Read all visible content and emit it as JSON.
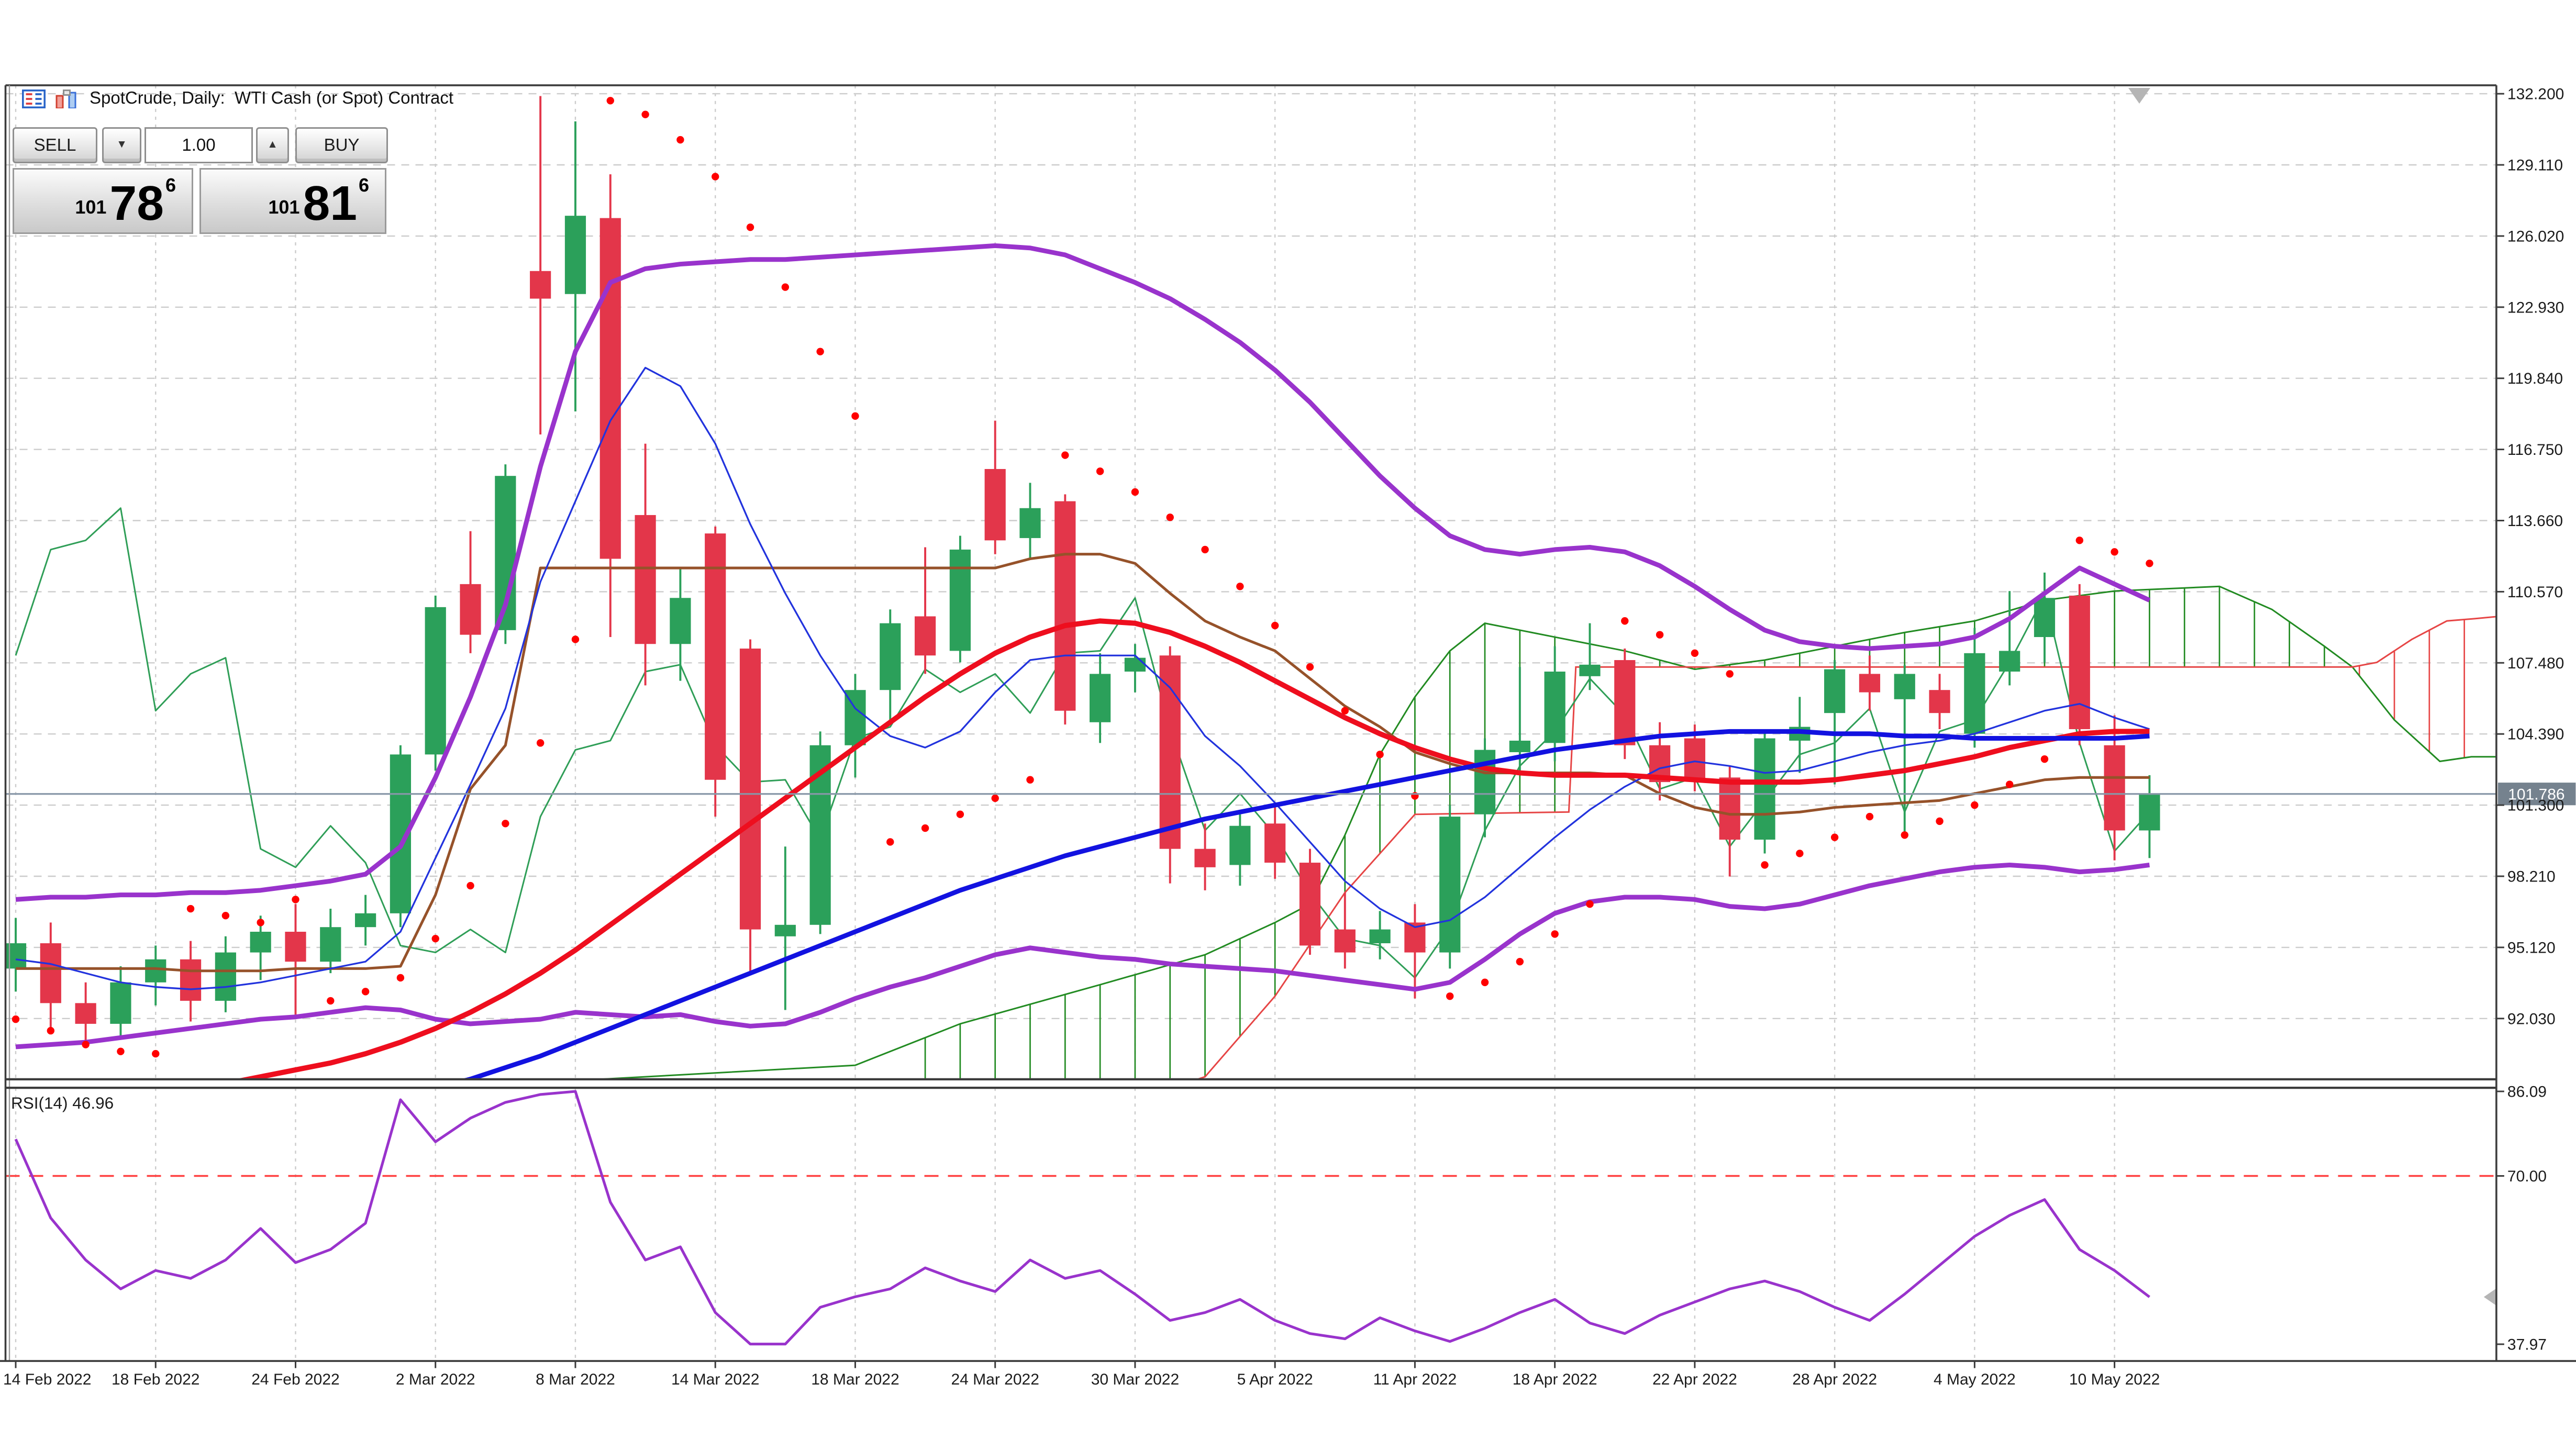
{
  "window": {
    "title": "SpotCrude, Daily:  WTI Cash (or Spot) Contract"
  },
  "trade_panel": {
    "sell_label": "SELL",
    "buy_label": "BUY",
    "volume": "1.00",
    "spinner_down": "▼",
    "spinner_up": "▲",
    "sell_price": {
      "prefix": "101",
      "main": "78",
      "sup": "6"
    },
    "buy_price": {
      "prefix": "101",
      "main": "81",
      "sup": "6"
    }
  },
  "colors": {
    "bull": "#2ba05a",
    "bear": "#e3364a",
    "sar": "#ff0000",
    "bollinger": "#9933cc",
    "ma_fast_red": "#ee0e1e",
    "ma_slow_blue": "#1212e0",
    "tenkan": "#2233dd",
    "kijun": "#96522a",
    "chikou": "#2f9e57",
    "senkou_a": "#228b22",
    "senkou_b": "#e64545",
    "rsi_line": "#9933cc",
    "rsi_level": "#ff4040",
    "grid": "#cccccc",
    "axis_text": "#1b1b1b",
    "bid_line": "#8897a8",
    "badge_bg": "#75828e",
    "badge_text": "#ffffff",
    "border": "#3c3c3c",
    "marker": "#b5b5b5"
  },
  "chart_data": {
    "type": "candlestick",
    "symbol": "SpotCrude",
    "timeframe": "Daily",
    "x_tick_labels": [
      "14 Feb 2022",
      "18 Feb 2022",
      "24 Feb 2022",
      "2 Mar 2022",
      "8 Mar 2022",
      "14 Mar 2022",
      "18 Mar 2022",
      "24 Mar 2022",
      "30 Mar 2022",
      "5 Apr 2022",
      "11 Apr 2022",
      "18 Apr 2022",
      "22 Apr 2022",
      "28 Apr 2022",
      "4 May 2022",
      "10 May 2022"
    ],
    "bars_per_tick": 4,
    "price_axis_labels": [
      "132.200",
      "129.110",
      "126.020",
      "122.930",
      "119.840",
      "116.750",
      "113.660",
      "110.570",
      "107.480",
      "104.390",
      "101.300",
      "98.210",
      "95.120",
      "92.030"
    ],
    "price_axis_top_value": 132.2,
    "price_axis_step": 3.09,
    "current_price": "101.786",
    "ohlc": [
      [
        94.2,
        96.4,
        93.2,
        95.3
      ],
      [
        95.3,
        96.2,
        91.6,
        92.7
      ],
      [
        92.7,
        93.6,
        90.8,
        91.8
      ],
      [
        91.8,
        94.3,
        91.2,
        93.6
      ],
      [
        93.6,
        95.2,
        92.6,
        94.6
      ],
      [
        94.6,
        95.4,
        91.9,
        92.8
      ],
      [
        92.8,
        95.6,
        92.3,
        94.9
      ],
      [
        94.9,
        96.5,
        93.7,
        95.8
      ],
      [
        95.8,
        97.0,
        92.2,
        94.5
      ],
      [
        94.5,
        96.8,
        94.0,
        96.0
      ],
      [
        96.0,
        97.4,
        95.2,
        96.6
      ],
      [
        96.6,
        103.9,
        96.0,
        103.5
      ],
      [
        103.5,
        110.4,
        102.8,
        109.9
      ],
      [
        110.9,
        113.2,
        107.9,
        108.7
      ],
      [
        108.9,
        116.1,
        108.3,
        115.6
      ],
      [
        124.5,
        132.1,
        117.4,
        123.3
      ],
      [
        123.5,
        131.0,
        118.4,
        126.9
      ],
      [
        126.8,
        128.7,
        108.6,
        112.0
      ],
      [
        113.9,
        117.0,
        106.5,
        108.3
      ],
      [
        108.3,
        111.6,
        106.7,
        110.3
      ],
      [
        113.1,
        113.4,
        100.8,
        102.4
      ],
      [
        108.1,
        108.5,
        93.9,
        95.9
      ],
      [
        95.6,
        99.5,
        92.4,
        96.1
      ],
      [
        96.1,
        104.5,
        95.7,
        103.9
      ],
      [
        103.9,
        107.0,
        102.5,
        106.3
      ],
      [
        106.3,
        109.8,
        105.0,
        109.2
      ],
      [
        109.5,
        112.5,
        107.0,
        107.8
      ],
      [
        108.0,
        113.0,
        107.5,
        112.4
      ],
      [
        115.9,
        118.0,
        112.2,
        112.8
      ],
      [
        112.9,
        115.3,
        112.0,
        114.2
      ],
      [
        114.5,
        114.8,
        104.8,
        105.4
      ],
      [
        104.9,
        107.9,
        104.0,
        107.0
      ],
      [
        107.1,
        108.3,
        106.2,
        107.7
      ],
      [
        107.8,
        108.2,
        97.9,
        99.4
      ],
      [
        99.4,
        100.5,
        97.6,
        98.6
      ],
      [
        98.7,
        100.9,
        97.8,
        100.4
      ],
      [
        100.5,
        101.2,
        98.1,
        98.8
      ],
      [
        98.8,
        99.4,
        94.8,
        95.2
      ],
      [
        95.9,
        97.5,
        94.2,
        94.9
      ],
      [
        95.3,
        96.7,
        94.6,
        95.9
      ],
      [
        96.2,
        97.0,
        92.9,
        94.9
      ],
      [
        94.9,
        101.3,
        94.2,
        100.8
      ],
      [
        100.9,
        104.2,
        99.9,
        103.7
      ],
      [
        103.6,
        107.3,
        102.8,
        104.1
      ],
      [
        104.0,
        108.2,
        103.2,
        107.1
      ],
      [
        106.9,
        109.2,
        106.3,
        107.4
      ],
      [
        107.6,
        108.1,
        103.3,
        103.9
      ],
      [
        103.9,
        104.9,
        101.5,
        102.3
      ],
      [
        104.2,
        104.8,
        101.9,
        102.4
      ],
      [
        102.5,
        103.0,
        98.2,
        99.8
      ],
      [
        99.8,
        104.6,
        99.2,
        104.2
      ],
      [
        104.1,
        106.0,
        102.7,
        104.7
      ],
      [
        105.3,
        107.6,
        102.2,
        107.2
      ],
      [
        107.0,
        107.8,
        105.4,
        106.2
      ],
      [
        105.9,
        107.4,
        100.1,
        107.0
      ],
      [
        106.3,
        107.0,
        104.6,
        105.3
      ],
      [
        104.4,
        109.0,
        103.8,
        107.9
      ],
      [
        107.1,
        110.6,
        106.5,
        108.0
      ],
      [
        108.6,
        111.4,
        107.5,
        110.3
      ],
      [
        110.4,
        110.9,
        103.9,
        104.6
      ],
      [
        103.9,
        105.2,
        98.9,
        100.2
      ],
      [
        100.2,
        102.6,
        99.0,
        101.8
      ]
    ],
    "indicators": {
      "bollinger_upper": [
        97.2,
        97.3,
        97.3,
        97.4,
        97.4,
        97.5,
        97.5,
        97.6,
        97.8,
        98.0,
        98.3,
        99.5,
        102.5,
        106.0,
        110.0,
        116.0,
        121.0,
        124.0,
        124.6,
        124.8,
        124.9,
        125.0,
        125.0,
        125.1,
        125.2,
        125.3,
        125.4,
        125.5,
        125.6,
        125.5,
        125.2,
        124.6,
        124.0,
        123.3,
        122.4,
        121.4,
        120.2,
        118.8,
        117.2,
        115.6,
        114.2,
        113.0,
        112.4,
        112.2,
        112.4,
        112.5,
        112.3,
        111.7,
        110.8,
        109.8,
        108.9,
        108.4,
        108.2,
        108.1,
        108.2,
        108.3,
        108.6,
        109.4,
        110.5,
        111.6,
        110.9,
        110.2
      ],
      "bollinger_lower": [
        90.8,
        90.9,
        91.0,
        91.2,
        91.4,
        91.6,
        91.8,
        92.0,
        92.1,
        92.3,
        92.5,
        92.4,
        92.0,
        91.8,
        91.9,
        92.0,
        92.3,
        92.2,
        92.1,
        92.2,
        91.9,
        91.7,
        91.8,
        92.3,
        92.9,
        93.4,
        93.8,
        94.3,
        94.8,
        95.1,
        94.9,
        94.7,
        94.6,
        94.4,
        94.3,
        94.2,
        94.1,
        93.9,
        93.7,
        93.5,
        93.3,
        93.6,
        94.6,
        95.7,
        96.6,
        97.1,
        97.3,
        97.3,
        97.2,
        96.9,
        96.8,
        97.0,
        97.4,
        97.8,
        98.1,
        98.4,
        98.6,
        98.7,
        98.6,
        98.4,
        98.5,
        98.7
      ],
      "ma_red": [
        88.3,
        88.4,
        88.5,
        88.6,
        88.8,
        89.0,
        89.2,
        89.5,
        89.8,
        90.1,
        90.5,
        91.0,
        91.6,
        92.3,
        93.1,
        94.0,
        95.0,
        96.1,
        97.2,
        98.3,
        99.4,
        100.5,
        101.6,
        102.7,
        103.8,
        104.9,
        106.0,
        107.0,
        107.9,
        108.6,
        109.1,
        109.3,
        109.2,
        108.8,
        108.2,
        107.5,
        106.7,
        105.9,
        105.1,
        104.4,
        103.8,
        103.3,
        102.9,
        102.7,
        102.6,
        102.6,
        102.6,
        102.5,
        102.4,
        102.3,
        102.3,
        102.3,
        102.4,
        102.6,
        102.8,
        103.1,
        103.4,
        103.8,
        104.1,
        104.4,
        104.5,
        104.5
      ],
      "ma_blue": [
        86.4,
        86.5,
        86.6,
        86.8,
        87.0,
        87.2,
        87.4,
        87.6,
        87.8,
        88.0,
        88.3,
        88.6,
        89.0,
        89.4,
        89.9,
        90.4,
        91.0,
        91.6,
        92.2,
        92.8,
        93.4,
        94.0,
        94.6,
        95.2,
        95.8,
        96.4,
        97.0,
        97.6,
        98.1,
        98.6,
        99.1,
        99.5,
        99.9,
        100.3,
        100.7,
        101.0,
        101.3,
        101.6,
        101.9,
        102.2,
        102.5,
        102.8,
        103.1,
        103.4,
        103.7,
        103.9,
        104.1,
        104.3,
        104.4,
        104.5,
        104.5,
        104.5,
        104.4,
        104.4,
        104.3,
        104.3,
        104.2,
        104.2,
        104.2,
        104.2,
        104.2,
        104.3
      ],
      "ichimoku_tenkan": [
        94.6,
        94.4,
        94.0,
        93.6,
        93.4,
        93.3,
        93.4,
        93.6,
        93.9,
        94.2,
        94.5,
        95.8,
        99.0,
        102.2,
        105.5,
        111.0,
        114.5,
        118.0,
        120.3,
        119.5,
        117.0,
        113.5,
        110.5,
        107.8,
        105.5,
        104.3,
        103.8,
        104.5,
        106.2,
        107.6,
        107.8,
        107.8,
        107.8,
        106.4,
        104.3,
        103.0,
        101.4,
        99.7,
        98.0,
        96.8,
        96.0,
        96.3,
        97.3,
        98.6,
        99.9,
        101.1,
        102.1,
        102.9,
        103.2,
        103.0,
        102.7,
        102.8,
        103.2,
        103.6,
        103.9,
        104.1,
        104.4,
        104.9,
        105.4,
        105.7,
        105.1,
        104.6
      ],
      "ichimoku_kijun": [
        94.2,
        94.2,
        94.2,
        94.2,
        94.2,
        94.1,
        94.1,
        94.1,
        94.2,
        94.2,
        94.2,
        94.3,
        97.4,
        102.0,
        103.9,
        111.6,
        111.6,
        111.6,
        111.6,
        111.6,
        111.6,
        111.6,
        111.6,
        111.6,
        111.6,
        111.6,
        111.6,
        111.6,
        111.6,
        112.0,
        112.2,
        112.2,
        111.8,
        110.5,
        109.3,
        108.6,
        108.0,
        106.8,
        105.6,
        104.7,
        103.6,
        103.1,
        102.7,
        102.7,
        102.7,
        102.7,
        102.6,
        101.8,
        101.2,
        100.9,
        100.9,
        101.0,
        101.2,
        101.3,
        101.4,
        101.5,
        101.8,
        102.1,
        102.4,
        102.5,
        102.5,
        102.5
      ],
      "ichimoku_chikou": [
        107.8,
        112.4,
        112.8,
        114.2,
        105.4,
        107.0,
        107.7,
        99.4,
        98.6,
        100.4,
        98.8,
        95.2,
        94.9,
        95.9,
        94.9,
        100.8,
        103.7,
        104.1,
        107.1,
        107.4,
        103.9,
        102.3,
        102.4,
        99.8,
        104.2,
        104.7,
        107.2,
        106.2,
        107.0,
        105.3,
        107.9,
        108.0,
        110.3,
        104.6,
        100.2,
        101.8,
        100.0,
        97.5,
        95.5,
        95.2,
        93.8,
        96.0,
        100.2,
        103.0,
        104.5,
        106.8,
        105.2,
        102.0,
        102.5,
        99.5,
        101.5,
        103.5,
        104.0,
        105.5,
        101.0,
        104.5,
        105.0,
        107.5,
        110.4,
        104.0,
        99.3,
        101.0
      ],
      "senkou_a_anchors": [
        [
          0,
          88.0
        ],
        [
          24,
          90.0
        ],
        [
          27,
          91.8
        ],
        [
          31,
          93.5
        ],
        [
          34,
          94.8
        ],
        [
          36,
          96.2
        ],
        [
          37,
          97.0
        ],
        [
          38,
          100.0
        ],
        [
          39,
          103.5
        ],
        [
          40,
          106.0
        ],
        [
          41,
          108.0
        ],
        [
          42,
          109.2
        ],
        [
          44,
          108.6
        ],
        [
          46,
          108.0
        ],
        [
          48,
          107.2
        ],
        [
          50,
          107.6
        ],
        [
          52,
          108.2
        ],
        [
          54,
          108.8
        ],
        [
          56,
          109.3
        ],
        [
          58,
          110.2
        ],
        [
          60,
          110.6
        ],
        [
          63,
          110.8
        ],
        [
          64.5,
          109.8
        ],
        [
          66,
          108.2
        ],
        [
          66.8,
          107.3
        ],
        [
          68,
          105.0
        ],
        [
          69.3,
          103.2
        ],
        [
          70.2,
          103.4
        ],
        [
          71,
          103.4
        ]
      ],
      "senkou_b_anchors": [
        [
          0,
          86.2
        ],
        [
          20,
          86.5
        ],
        [
          30,
          87.5
        ],
        [
          34,
          89.5
        ],
        [
          36,
          93.0
        ],
        [
          38,
          97.5
        ],
        [
          40,
          100.9
        ],
        [
          44.4,
          101.0
        ],
        [
          44.6,
          107.3
        ],
        [
          66.8,
          107.3
        ],
        [
          67.5,
          107.5
        ],
        [
          68.5,
          108.5
        ],
        [
          69.5,
          109.3
        ],
        [
          70.3,
          109.4
        ],
        [
          71,
          109.5
        ]
      ],
      "parabolic_sar": [
        92.0,
        91.5,
        90.9,
        90.6,
        90.5,
        96.8,
        96.5,
        96.2,
        97.2,
        92.8,
        93.2,
        93.8,
        95.5,
        97.8,
        100.5,
        104.0,
        108.5,
        131.9,
        131.3,
        130.2,
        128.6,
        126.4,
        123.8,
        121.0,
        118.2,
        99.7,
        100.3,
        100.9,
        101.6,
        102.4,
        116.5,
        115.8,
        114.9,
        113.8,
        112.4,
        110.8,
        109.1,
        107.3,
        105.4,
        103.5,
        101.7,
        93.0,
        93.6,
        94.5,
        95.7,
        97.0,
        109.3,
        108.7,
        107.9,
        107.0,
        98.7,
        99.2,
        99.9,
        100.8,
        100.0,
        100.6,
        101.3,
        102.2,
        103.3,
        112.8,
        112.3,
        111.8
      ]
    },
    "rsi": {
      "label": "RSI(14) 46.96",
      "period": 14,
      "current": 46.96,
      "axis_labels": [
        "86.09",
        "70.00",
        "37.97"
      ],
      "axis_max": 86.09,
      "axis_min": 37.97,
      "level": 70,
      "values": [
        77,
        62,
        54,
        48.5,
        52,
        50.5,
        54,
        60,
        53.5,
        56,
        61,
        84.5,
        76.5,
        81,
        84,
        85.5,
        86.09,
        65,
        54,
        56.5,
        44,
        38,
        38,
        45,
        47,
        48.5,
        52.5,
        50,
        48,
        54,
        50.5,
        52,
        47.5,
        42.5,
        44,
        46.5,
        42.5,
        40,
        39,
        43,
        40.5,
        38.5,
        41,
        44,
        46.5,
        42,
        40,
        43.5,
        46,
        48.5,
        50,
        48,
        45,
        42.5,
        47.5,
        53,
        58.5,
        62.5,
        65.5,
        56,
        52,
        46.96
      ]
    }
  }
}
